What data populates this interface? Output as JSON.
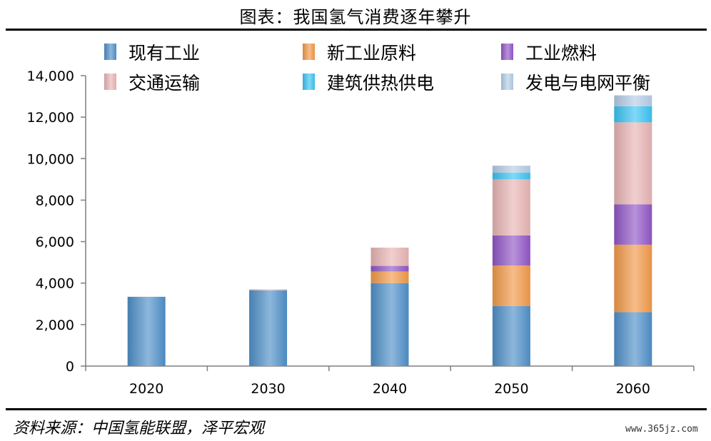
{
  "header": {
    "title": "图表：我国氢气消费逐年攀升"
  },
  "footer": {
    "source": "资料来源：中国氢能联盟，泽平宏观",
    "watermark": "www.365jz.com"
  },
  "chart_data": {
    "type": "bar",
    "stacked": true,
    "title": "",
    "xlabel": "",
    "ylabel": "",
    "categories": [
      "2020",
      "2030",
      "2040",
      "2050",
      "2060"
    ],
    "ylim": [
      0,
      14000
    ],
    "yticks": [
      0,
      2000,
      4000,
      6000,
      8000,
      10000,
      12000,
      14000
    ],
    "ytick_labels": [
      "0",
      "2,000",
      "4,000",
      "6,000",
      "8,000",
      "10,000",
      "12,000",
      "14,000"
    ],
    "grid": false,
    "legend_position": "top",
    "series": [
      {
        "name": "现有工业",
        "color": "#4f90c9",
        "values": [
          3340,
          3650,
          4000,
          2900,
          2600
        ]
      },
      {
        "name": "新工业原料",
        "color": "#f29a4a",
        "values": [
          0,
          0,
          560,
          1950,
          3250
        ]
      },
      {
        "name": "工业燃料",
        "color": "#9257c7",
        "values": [
          0,
          0,
          270,
          1450,
          1950
        ]
      },
      {
        "name": "交通运输",
        "color": "#e9b5b5",
        "values": [
          0,
          50,
          880,
          2700,
          3950
        ]
      },
      {
        "name": "建筑供热供电",
        "color": "#3cc4f2",
        "values": [
          0,
          0,
          0,
          320,
          780
        ]
      },
      {
        "name": "发电与电网平衡",
        "color": "#b6cde6",
        "values": [
          0,
          0,
          0,
          340,
          520
        ]
      }
    ]
  }
}
